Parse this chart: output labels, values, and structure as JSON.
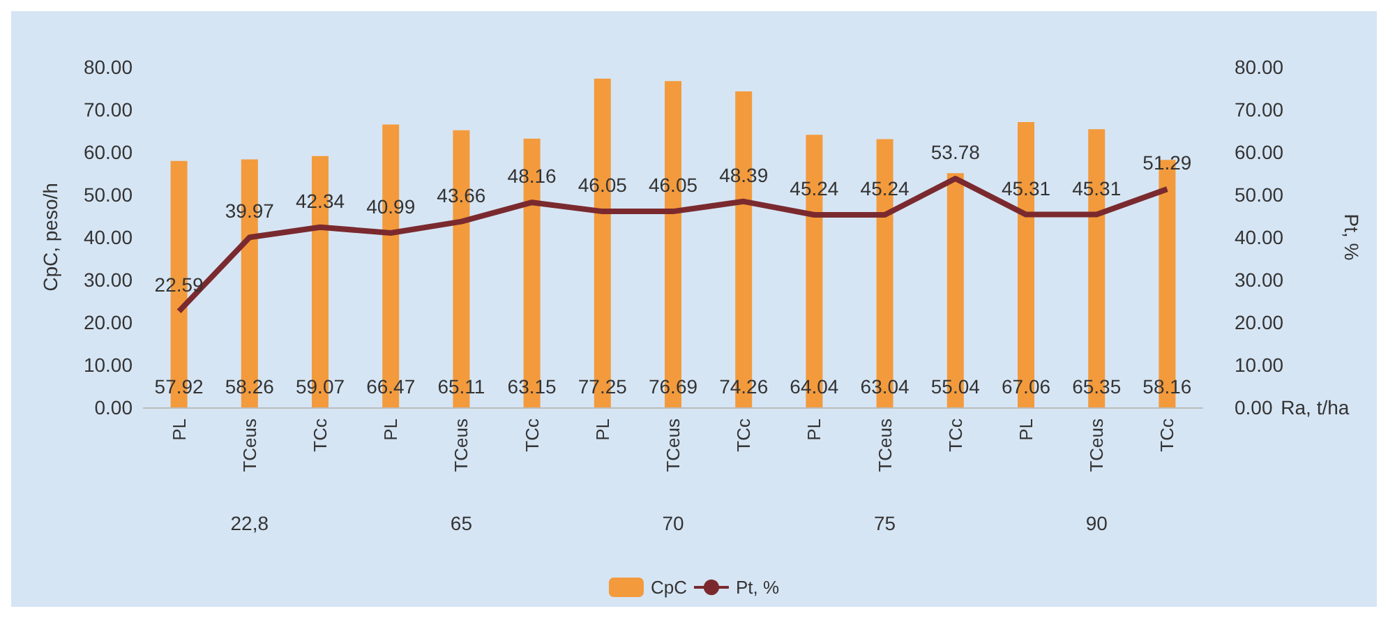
{
  "chart_data": {
    "type": "bar",
    "categories": [
      "PL",
      "TCeus",
      "TCc",
      "PL",
      "TCeus",
      "TCc",
      "PL",
      "TCeus",
      "TCc",
      "PL",
      "TCeus",
      "TCc",
      "PL",
      "TCeus",
      "TCc"
    ],
    "annotations": [
      "22,8",
      "65",
      "70",
      "75",
      "90"
    ],
    "xlabel": "Ra, t/ha",
    "ylabel": "CpC, peso/h",
    "y2label": "Pt, %",
    "series": [
      {
        "name": "CpC",
        "color": "#f39a3c",
        "values": [
          57.92,
          58.26,
          59.07,
          66.47,
          65.11,
          63.15,
          77.25,
          76.69,
          74.26,
          64.04,
          63.04,
          55.04,
          67.06,
          65.35,
          58.16
        ]
      },
      {
        "name": "Pt, %",
        "type": "line",
        "color": "#7a2a2e",
        "values": [
          22.59,
          39.97,
          42.34,
          40.99,
          43.66,
          48.16,
          46.05,
          46.05,
          48.39,
          45.24,
          45.24,
          53.78,
          45.31,
          45.31,
          51.29
        ]
      }
    ],
    "ylim": [
      0,
      80
    ],
    "yticks": [
      {
        "value": 0,
        "label": "0.00"
      },
      {
        "value": 10,
        "label": "10.00"
      },
      {
        "value": 20,
        "label": "20.00"
      },
      {
        "value": 30,
        "label": "30.00"
      },
      {
        "value": 40,
        "label": "40.00"
      },
      {
        "value": 50,
        "label": "50.00"
      },
      {
        "value": 60,
        "label": "60.00"
      },
      {
        "value": 70,
        "label": "70.00"
      },
      {
        "value": 80,
        "label": "80.00"
      }
    ],
    "y2lim": [
      0,
      80
    ],
    "y2ticks": [
      {
        "value": 0,
        "label": "0.00"
      },
      {
        "value": 10,
        "label": "10.00"
      },
      {
        "value": 20,
        "label": "20.00"
      },
      {
        "value": 30,
        "label": "30.00"
      },
      {
        "value": 40,
        "label": "40.00"
      },
      {
        "value": 50,
        "label": "50.00"
      },
      {
        "value": 60,
        "label": "60.00"
      },
      {
        "value": 70,
        "label": "70.00"
      },
      {
        "value": 80,
        "label": "80.00"
      }
    ],
    "data_labels": true,
    "legend": "bottom",
    "marker": "none",
    "grid": false
  }
}
